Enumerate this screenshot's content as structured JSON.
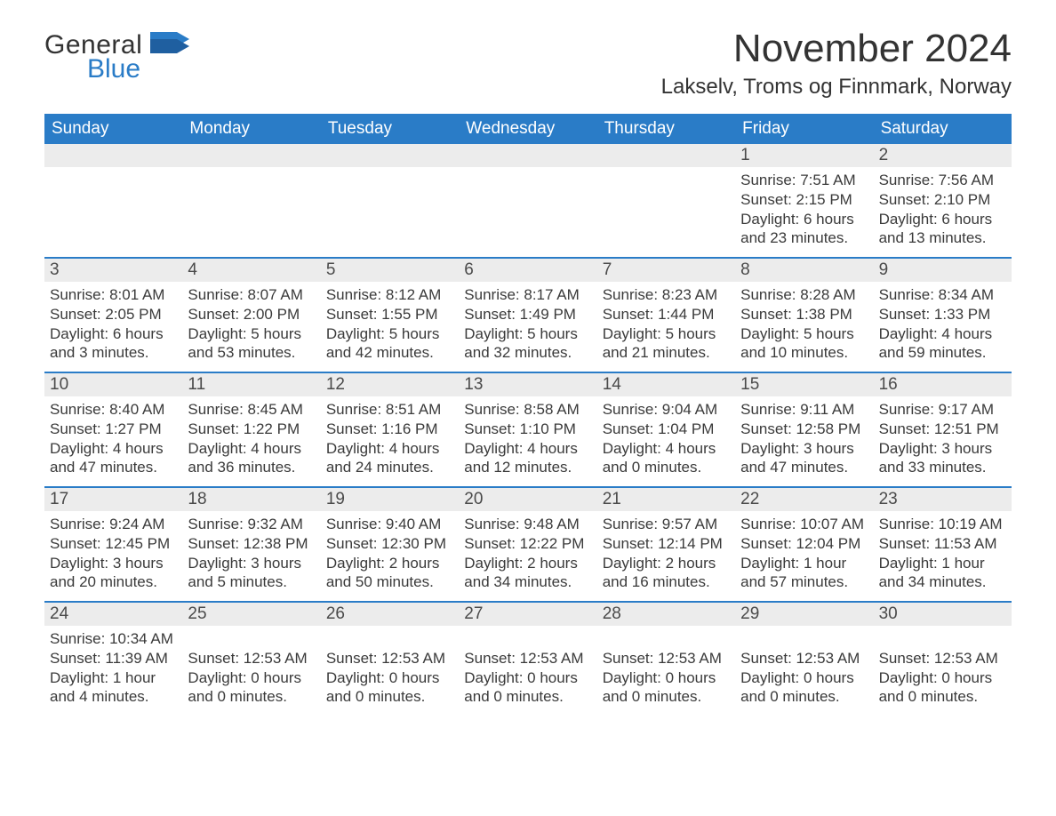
{
  "brand": {
    "word1": "General",
    "word2": "Blue",
    "accent_color": "#2a7cc7"
  },
  "title": {
    "month": "November 2024",
    "location": "Lakselv, Troms og Finnmark, Norway"
  },
  "columns": [
    "Sunday",
    "Monday",
    "Tuesday",
    "Wednesday",
    "Thursday",
    "Friday",
    "Saturday"
  ],
  "style": {
    "header_bg": "#2a7cc7",
    "header_text": "#ffffff",
    "daynum_bg": "#ececec",
    "border_color": "#2a7cc7",
    "body_text": "#3a3a3a",
    "title_fontsize": 44,
    "location_fontsize": 24,
    "header_fontsize": 19,
    "cell_fontsize": 17
  },
  "weeks": [
    [
      {
        "num": "",
        "lines": []
      },
      {
        "num": "",
        "lines": []
      },
      {
        "num": "",
        "lines": []
      },
      {
        "num": "",
        "lines": []
      },
      {
        "num": "",
        "lines": []
      },
      {
        "num": "1",
        "lines": [
          "Sunrise: 7:51 AM",
          "Sunset: 2:15 PM",
          "Daylight: 6 hours and 23 minutes."
        ]
      },
      {
        "num": "2",
        "lines": [
          "Sunrise: 7:56 AM",
          "Sunset: 2:10 PM",
          "Daylight: 6 hours and 13 minutes."
        ]
      }
    ],
    [
      {
        "num": "3",
        "lines": [
          "Sunrise: 8:01 AM",
          "Sunset: 2:05 PM",
          "Daylight: 6 hours and 3 minutes."
        ]
      },
      {
        "num": "4",
        "lines": [
          "Sunrise: 8:07 AM",
          "Sunset: 2:00 PM",
          "Daylight: 5 hours and 53 minutes."
        ]
      },
      {
        "num": "5",
        "lines": [
          "Sunrise: 8:12 AM",
          "Sunset: 1:55 PM",
          "Daylight: 5 hours and 42 minutes."
        ]
      },
      {
        "num": "6",
        "lines": [
          "Sunrise: 8:17 AM",
          "Sunset: 1:49 PM",
          "Daylight: 5 hours and 32 minutes."
        ]
      },
      {
        "num": "7",
        "lines": [
          "Sunrise: 8:23 AM",
          "Sunset: 1:44 PM",
          "Daylight: 5 hours and 21 minutes."
        ]
      },
      {
        "num": "8",
        "lines": [
          "Sunrise: 8:28 AM",
          "Sunset: 1:38 PM",
          "Daylight: 5 hours and 10 minutes."
        ]
      },
      {
        "num": "9",
        "lines": [
          "Sunrise: 8:34 AM",
          "Sunset: 1:33 PM",
          "Daylight: 4 hours and 59 minutes."
        ]
      }
    ],
    [
      {
        "num": "10",
        "lines": [
          "Sunrise: 8:40 AM",
          "Sunset: 1:27 PM",
          "Daylight: 4 hours and 47 minutes."
        ]
      },
      {
        "num": "11",
        "lines": [
          "Sunrise: 8:45 AM",
          "Sunset: 1:22 PM",
          "Daylight: 4 hours and 36 minutes."
        ]
      },
      {
        "num": "12",
        "lines": [
          "Sunrise: 8:51 AM",
          "Sunset: 1:16 PM",
          "Daylight: 4 hours and 24 minutes."
        ]
      },
      {
        "num": "13",
        "lines": [
          "Sunrise: 8:58 AM",
          "Sunset: 1:10 PM",
          "Daylight: 4 hours and 12 minutes."
        ]
      },
      {
        "num": "14",
        "lines": [
          "Sunrise: 9:04 AM",
          "Sunset: 1:04 PM",
          "Daylight: 4 hours and 0 minutes."
        ]
      },
      {
        "num": "15",
        "lines": [
          "Sunrise: 9:11 AM",
          "Sunset: 12:58 PM",
          "Daylight: 3 hours and 47 minutes."
        ]
      },
      {
        "num": "16",
        "lines": [
          "Sunrise: 9:17 AM",
          "Sunset: 12:51 PM",
          "Daylight: 3 hours and 33 minutes."
        ]
      }
    ],
    [
      {
        "num": "17",
        "lines": [
          "Sunrise: 9:24 AM",
          "Sunset: 12:45 PM",
          "Daylight: 3 hours and 20 minutes."
        ]
      },
      {
        "num": "18",
        "lines": [
          "Sunrise: 9:32 AM",
          "Sunset: 12:38 PM",
          "Daylight: 3 hours and 5 minutes."
        ]
      },
      {
        "num": "19",
        "lines": [
          "Sunrise: 9:40 AM",
          "Sunset: 12:30 PM",
          "Daylight: 2 hours and 50 minutes."
        ]
      },
      {
        "num": "20",
        "lines": [
          "Sunrise: 9:48 AM",
          "Sunset: 12:22 PM",
          "Daylight: 2 hours and 34 minutes."
        ]
      },
      {
        "num": "21",
        "lines": [
          "Sunrise: 9:57 AM",
          "Sunset: 12:14 PM",
          "Daylight: 2 hours and 16 minutes."
        ]
      },
      {
        "num": "22",
        "lines": [
          "Sunrise: 10:07 AM",
          "Sunset: 12:04 PM",
          "Daylight: 1 hour and 57 minutes."
        ]
      },
      {
        "num": "23",
        "lines": [
          "Sunrise: 10:19 AM",
          "Sunset: 11:53 AM",
          "Daylight: 1 hour and 34 minutes."
        ]
      }
    ],
    [
      {
        "num": "24",
        "lines": [
          "Sunrise: 10:34 AM",
          "Sunset: 11:39 AM",
          "Daylight: 1 hour and 4 minutes."
        ]
      },
      {
        "num": "25",
        "lines": [
          "",
          "Sunset: 12:53 AM",
          "Daylight: 0 hours and 0 minutes."
        ]
      },
      {
        "num": "26",
        "lines": [
          "",
          "Sunset: 12:53 AM",
          "Daylight: 0 hours and 0 minutes."
        ]
      },
      {
        "num": "27",
        "lines": [
          "",
          "Sunset: 12:53 AM",
          "Daylight: 0 hours and 0 minutes."
        ]
      },
      {
        "num": "28",
        "lines": [
          "",
          "Sunset: 12:53 AM",
          "Daylight: 0 hours and 0 minutes."
        ]
      },
      {
        "num": "29",
        "lines": [
          "",
          "Sunset: 12:53 AM",
          "Daylight: 0 hours and 0 minutes."
        ]
      },
      {
        "num": "30",
        "lines": [
          "",
          "Sunset: 12:53 AM",
          "Daylight: 0 hours and 0 minutes."
        ]
      }
    ]
  ]
}
